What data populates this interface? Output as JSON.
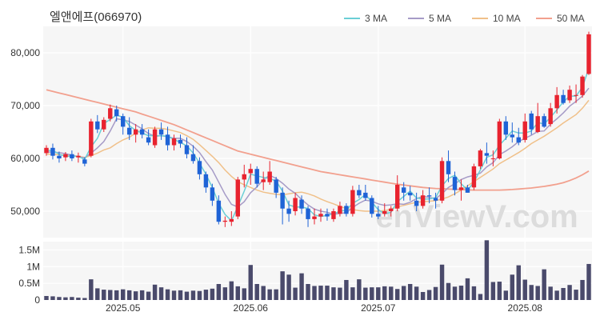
{
  "title": "엘앤에프(066970)",
  "watermark": "enViewV.com",
  "colors": {
    "up": "#e8232f",
    "down": "#1f63d6",
    "ma3": "#6bcfd6",
    "ma5": "#a69bc7",
    "ma10": "#f0c089",
    "ma50": "#f2a08e",
    "volume": "#4a4a6b",
    "plot_bg": "#f6f6f6",
    "grid": "#ffffff"
  },
  "chart_data": {
    "type": "candlestick",
    "legend": [
      {
        "label": "3 MA",
        "key": "ma3"
      },
      {
        "label": "5 MA",
        "key": "ma5"
      },
      {
        "label": "10 MA",
        "key": "ma10"
      },
      {
        "label": "50 MA",
        "key": "ma50"
      }
    ],
    "legend_placement": "top-right",
    "price_axis": {
      "ticks": [
        50000,
        60000,
        70000,
        80000
      ],
      "tick_labels": [
        "50,000",
        "60,000",
        "70,000",
        "80,000"
      ],
      "range": [
        45000,
        85000
      ]
    },
    "volume_axis": {
      "ticks": [
        0,
        500000,
        1000000,
        1500000
      ],
      "tick_labels": [
        "0",
        "0.5M",
        "1M",
        "1.5M"
      ],
      "range": [
        0,
        1750000
      ]
    },
    "x_tick_labels": [
      {
        "index": 12,
        "label": "2025.05"
      },
      {
        "index": 32,
        "label": "2025.06"
      },
      {
        "index": 52,
        "label": "2025.07"
      },
      {
        "index": 75,
        "label": "2025.08"
      }
    ],
    "candles": [
      [
        61000,
        62500,
        60500,
        62000
      ],
      [
        62000,
        62800,
        59800,
        60500
      ],
      [
        60500,
        61300,
        59200,
        60000
      ],
      [
        60200,
        61200,
        59500,
        60800
      ],
      [
        60800,
        61500,
        59500,
        60000
      ],
      [
        60200,
        61100,
        59200,
        60500
      ],
      [
        59800,
        60200,
        58500,
        59000
      ],
      [
        60500,
        67500,
        60200,
        67000
      ],
      [
        67000,
        68200,
        64800,
        65500
      ],
      [
        65500,
        67800,
        65000,
        67300
      ],
      [
        67500,
        70200,
        67000,
        69500
      ],
      [
        69300,
        70000,
        67000,
        68000
      ],
      [
        68000,
        68500,
        64500,
        66000
      ],
      [
        65800,
        67800,
        63500,
        64500
      ],
      [
        64500,
        66500,
        63000,
        65500
      ],
      [
        65500,
        66500,
        63800,
        64500
      ],
      [
        64000,
        65500,
        62500,
        63000
      ],
      [
        62500,
        66000,
        62000,
        65500
      ],
      [
        65500,
        66800,
        63500,
        64500
      ],
      [
        64500,
        66000,
        61500,
        62500
      ],
      [
        62500,
        64500,
        61500,
        63800
      ],
      [
        63500,
        64500,
        62000,
        62800
      ],
      [
        62500,
        64000,
        60000,
        60800
      ],
      [
        60800,
        62500,
        59000,
        59500
      ],
      [
        59500,
        60200,
        56000,
        57000
      ],
      [
        57000,
        57500,
        53500,
        54500
      ],
      [
        54500,
        55200,
        51000,
        52000
      ],
      [
        52000,
        53000,
        47500,
        48000
      ],
      [
        48000,
        49000,
        47000,
        48200
      ],
      [
        48000,
        50000,
        47200,
        48500
      ],
      [
        49000,
        56500,
        48500,
        56000
      ],
      [
        56000,
        58800,
        54500,
        57000
      ],
      [
        57200,
        59000,
        55000,
        58000
      ],
      [
        58000,
        58500,
        54500,
        55200
      ],
      [
        55500,
        57500,
        54000,
        56000
      ],
      [
        55500,
        59500,
        55000,
        57500
      ],
      [
        56000,
        56500,
        52500,
        53500
      ],
      [
        53500,
        54500,
        47500,
        50500
      ],
      [
        50500,
        52000,
        48000,
        49500
      ],
      [
        50000,
        53500,
        49200,
        52500
      ],
      [
        52200,
        53000,
        49500,
        50500
      ],
      [
        50500,
        51000,
        47000,
        48500
      ],
      [
        48500,
        50500,
        47500,
        49000
      ],
      [
        49000,
        50500,
        48000,
        49500
      ],
      [
        49500,
        50500,
        48200,
        49000
      ],
      [
        48500,
        50500,
        48000,
        50000
      ],
      [
        49500,
        51800,
        49000,
        51000
      ],
      [
        51000,
        51500,
        49000,
        49500
      ],
      [
        49500,
        54800,
        49000,
        54000
      ],
      [
        54000,
        55000,
        52500,
        53000
      ],
      [
        53500,
        55000,
        52000,
        52500
      ],
      [
        52500,
        53000,
        48800,
        49500
      ],
      [
        49500,
        51000,
        48500,
        49000
      ],
      [
        49500,
        51500,
        49000,
        50000
      ],
      [
        50000,
        51000,
        49000,
        50500
      ],
      [
        50500,
        56800,
        50000,
        55000
      ],
      [
        54500,
        55500,
        52000,
        53500
      ],
      [
        53500,
        54800,
        52000,
        53000
      ],
      [
        52000,
        53500,
        50000,
        51000
      ],
      [
        51000,
        54000,
        50500,
        53000
      ],
      [
        53000,
        54500,
        51500,
        52800
      ],
      [
        52500,
        53500,
        50500,
        52000
      ],
      [
        52000,
        60200,
        51500,
        59500
      ],
      [
        59500,
        61500,
        55500,
        57000
      ],
      [
        56500,
        57500,
        53000,
        54000
      ],
      [
        54000,
        56000,
        52000,
        54500
      ],
      [
        54500,
        55000,
        53500,
        53500
      ],
      [
        54500,
        59000,
        54000,
        58500
      ],
      [
        58500,
        61800,
        58000,
        61500
      ],
      [
        61000,
        63000,
        59000,
        60500
      ],
      [
        60000,
        61500,
        58500,
        60000
      ],
      [
        60000,
        67500,
        59800,
        67000
      ],
      [
        67000,
        68000,
        63500,
        64500
      ],
      [
        64500,
        66800,
        63000,
        64000
      ],
      [
        64000,
        65800,
        62500,
        63000
      ],
      [
        63500,
        68500,
        63000,
        67000
      ],
      [
        68500,
        69000,
        64500,
        65500
      ],
      [
        65000,
        70500,
        64800,
        68000
      ],
      [
        68000,
        68500,
        65800,
        66000
      ],
      [
        66500,
        70500,
        66000,
        69500
      ],
      [
        69500,
        73500,
        68500,
        72000
      ],
      [
        72000,
        73000,
        70200,
        70500
      ],
      [
        71000,
        73800,
        70500,
        73000
      ],
      [
        72000,
        74000,
        70500,
        72000
      ],
      [
        72000,
        75800,
        71500,
        75500
      ],
      [
        76000,
        84000,
        75800,
        83500
      ]
    ],
    "volumes": [
      120000,
      110000,
      90000,
      80000,
      90000,
      70000,
      60000,
      620000,
      350000,
      310000,
      300000,
      290000,
      320000,
      290000,
      260000,
      290000,
      250000,
      460000,
      380000,
      320000,
      280000,
      290000,
      250000,
      280000,
      270000,
      310000,
      340000,
      480000,
      380000,
      560000,
      410000,
      350000,
      1050000,
      480000,
      420000,
      320000,
      320000,
      860000,
      760000,
      370000,
      800000,
      480000,
      420000,
      430000,
      430000,
      380000,
      370000,
      600000,
      380000,
      620000,
      370000,
      380000,
      380000,
      410000,
      400000,
      330000,
      420000,
      480000,
      400000,
      240000,
      300000,
      390000,
      1060000,
      510000,
      400000,
      430000,
      650000,
      410000,
      180000,
      1790000,
      540000,
      550000,
      280000,
      760000,
      1040000,
      610000,
      450000,
      420000,
      920000,
      400000,
      280000,
      360000,
      450000,
      310000,
      600000,
      1080000
    ],
    "ma3": [
      61500,
      61500,
      60800,
      60400,
      60400,
      60400,
      59800,
      62200,
      63800,
      66600,
      67400,
      68200,
      67800,
      66200,
      65300,
      64800,
      64300,
      64300,
      64300,
      64200,
      63600,
      63000,
      62400,
      61000,
      59100,
      57000,
      54500,
      51500,
      49400,
      48200,
      50900,
      53800,
      57000,
      56700,
      56400,
      56200,
      55700,
      53800,
      51200,
      50800,
      50800,
      50500,
      49300,
      49000,
      49200,
      49500,
      50000,
      50200,
      51500,
      52200,
      53200,
      51700,
      50300,
      49500,
      49800,
      51800,
      52800,
      53800,
      52500,
      52300,
      52300,
      52600,
      54800,
      56200,
      56800,
      55200,
      54000,
      55500,
      57800,
      60200,
      60700,
      62500,
      63800,
      65200,
      64800,
      64800,
      65200,
      66800,
      66500,
      67800,
      69200,
      70700,
      71800,
      71800,
      73500,
      77000
    ],
    "ma5": [
      61200,
      61200,
      61100,
      60900,
      60600,
      60300,
      60100,
      61000,
      62000,
      63200,
      65200,
      67500,
      67300,
      67000,
      66300,
      65600,
      64700,
      64200,
      64300,
      64100,
      63800,
      63800,
      63200,
      62300,
      61100,
      59400,
      57800,
      55500,
      53200,
      51300,
      50800,
      51800,
      53500,
      54600,
      56000,
      56800,
      56200,
      55300,
      54200,
      53400,
      52200,
      51200,
      50400,
      50000,
      49800,
      49400,
      49600,
      49700,
      50700,
      51500,
      52100,
      51900,
      51400,
      51100,
      51200,
      51400,
      51300,
      51700,
      52400,
      52800,
      52600,
      52400,
      53300,
      54500,
      55200,
      56000,
      56500,
      56800,
      57200,
      58400,
      59200,
      60700,
      61400,
      62200,
      63200,
      63800,
      64400,
      65100,
      65200,
      66500,
      67500,
      68600,
      69900,
      70800,
      71800,
      73300
    ],
    "ma10": [
      60800,
      60800,
      60700,
      60600,
      60500,
      60400,
      60200,
      60500,
      61000,
      61600,
      62000,
      62800,
      63500,
      64000,
      64800,
      65400,
      65800,
      65700,
      65700,
      65500,
      65200,
      64900,
      64300,
      63600,
      62600,
      61500,
      60400,
      59200,
      57800,
      56600,
      55600,
      55000,
      54500,
      54000,
      53600,
      53400,
      53200,
      53100,
      53300,
      53500,
      53600,
      53300,
      52900,
      52300,
      51800,
      51400,
      50900,
      50500,
      50300,
      50100,
      50000,
      50000,
      50000,
      50100,
      50400,
      50800,
      51100,
      51400,
      51700,
      51800,
      51900,
      52000,
      52300,
      52700,
      53300,
      54000,
      54800,
      55600,
      56400,
      57200,
      58000,
      59000,
      59700,
      60400,
      61100,
      61900,
      62800,
      63500,
      64200,
      65000,
      65800,
      66700,
      67500,
      68300,
      69500,
      71000
    ],
    "ma50": [
      73000,
      72700,
      72400,
      72100,
      71800,
      71500,
      71200,
      70900,
      70600,
      70300,
      70000,
      69700,
      69400,
      69100,
      68800,
      68400,
      68000,
      67600,
      67200,
      66800,
      66400,
      65900,
      65400,
      64900,
      64400,
      63900,
      63400,
      62900,
      62400,
      61900,
      61400,
      61100,
      60800,
      60500,
      60200,
      59900,
      59600,
      59300,
      59000,
      58700,
      58400,
      58100,
      57800,
      57500,
      57300,
      57100,
      56900,
      56700,
      56500,
      56300,
      56100,
      55900,
      55700,
      55500,
      55300,
      55100,
      54950,
      54800,
      54650,
      54500,
      54400,
      54300,
      54250,
      54200,
      54150,
      54100,
      54050,
      54000,
      54000,
      54000,
      54000,
      54000,
      54050,
      54100,
      54200,
      54300,
      54400,
      54550,
      54700,
      54900,
      55100,
      55400,
      55800,
      56300,
      56900,
      57600
    ]
  }
}
